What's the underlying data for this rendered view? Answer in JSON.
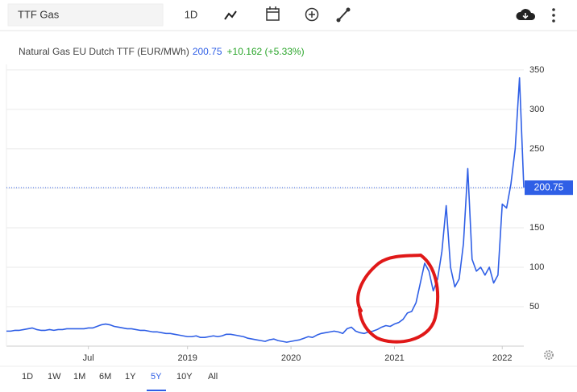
{
  "toolbar": {
    "search": "TTF Gas",
    "interval": "1D"
  },
  "chart_data": {
    "type": "line",
    "title": "Natural Gas EU Dutch TTF (EUR/MWh)",
    "last_price": 200.75,
    "change": "+10.162 (+5.33%)",
    "categories": [
      null,
      null,
      null,
      null,
      null,
      null,
      null,
      null,
      null,
      null,
      null,
      null,
      null,
      null,
      null,
      null,
      null,
      null,
      null,
      "Jul",
      null,
      null,
      null,
      null,
      null,
      null,
      null,
      null,
      null,
      null,
      null,
      null,
      null,
      null,
      null,
      null,
      null,
      null,
      null,
      null,
      null,
      null,
      "2019",
      null,
      null,
      null,
      null,
      null,
      null,
      null,
      null,
      null,
      null,
      null,
      null,
      null,
      null,
      null,
      null,
      null,
      null,
      null,
      null,
      null,
      null,
      null,
      "2020",
      null,
      null,
      null,
      null,
      null,
      null,
      null,
      null,
      null,
      null,
      null,
      null,
      null,
      null,
      null,
      null,
      null,
      null,
      null,
      null,
      null,
      null,
      null,
      "2021",
      null,
      null,
      null,
      null,
      null,
      null,
      null,
      null,
      null,
      null,
      null,
      null,
      null,
      null,
      null,
      null,
      null,
      null,
      null,
      null,
      null,
      null,
      null,
      null,
      "2022",
      null,
      null,
      null,
      null,
      null
    ],
    "series": [
      {
        "name": "Natural Gas EU Dutch TTF",
        "color": "#2f5fe6",
        "values": [
          19,
          19,
          20,
          20,
          21,
          22,
          23,
          21,
          20,
          20,
          21,
          20,
          21,
          21,
          22,
          22,
          22,
          22,
          22,
          23,
          23,
          25,
          27,
          28,
          27,
          25,
          24,
          23,
          22,
          22,
          21,
          20,
          20,
          19,
          18,
          18,
          17,
          16,
          16,
          15,
          14,
          13,
          12,
          12,
          13,
          11,
          11,
          12,
          13,
          12,
          13,
          15,
          15,
          14,
          13,
          12,
          10,
          9,
          8,
          7,
          6,
          8,
          9,
          7,
          6,
          5,
          6,
          7,
          8,
          10,
          12,
          11,
          14,
          16,
          17,
          18,
          19,
          18,
          16,
          22,
          24,
          19,
          17,
          16,
          18,
          19,
          21,
          24,
          26,
          25,
          28,
          30,
          34,
          42,
          44,
          55,
          80,
          105,
          95,
          70,
          85,
          120,
          178,
          100,
          75,
          85,
          130,
          225,
          110,
          95,
          100,
          90,
          100,
          80,
          90,
          180,
          175,
          205,
          250,
          340,
          200.75
        ]
      }
    ],
    "ylim": [
      0,
      357
    ],
    "yticks": [
      50,
      100,
      150,
      200,
      250,
      300,
      350
    ],
    "grid": true,
    "ranges": [
      "1D",
      "1W",
      "1M",
      "6M",
      "1Y",
      "5Y",
      "10Y",
      "All"
    ],
    "selected_range": "5Y"
  }
}
